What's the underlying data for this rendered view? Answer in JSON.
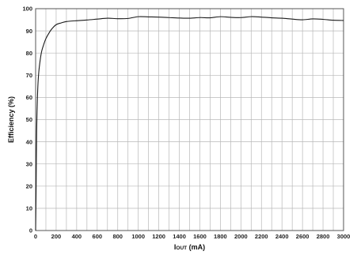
{
  "chart_data": {
    "type": "line",
    "title": "",
    "xlabel": {
      "main": "I",
      "sub": "OUT",
      "unit": " (mA)"
    },
    "ylabel": "Efficiency (%)",
    "xlim": [
      0,
      3000
    ],
    "ylim": [
      0,
      100
    ],
    "x_ticks": [
      0,
      100,
      200,
      300,
      400,
      500,
      600,
      700,
      800,
      900,
      1000,
      1100,
      1200,
      1300,
      1400,
      1500,
      1600,
      1700,
      1800,
      1900,
      2000,
      2100,
      2200,
      2300,
      2400,
      2500,
      2600,
      2700,
      2800,
      2900,
      3000
    ],
    "x_tick_labels": [
      "0",
      "200",
      "400",
      "600",
      "800",
      "1000",
      "1200",
      "1400",
      "1600",
      "1800",
      "2000",
      "2200",
      "2400",
      "2600",
      "2800",
      "3000"
    ],
    "y_tick_labels": [
      "0",
      "10",
      "20",
      "30",
      "40",
      "50",
      "60",
      "70",
      "80",
      "90",
      "100"
    ],
    "grid": true,
    "legend": "none",
    "series": [
      {
        "color": "#1a1a1a",
        "x": [
          0,
          5,
          10,
          20,
          30,
          45,
          60,
          80,
          100,
          130,
          160,
          200,
          250,
          300,
          400,
          500,
          600,
          700,
          800,
          900,
          1000,
          1100,
          1200,
          1300,
          1400,
          1500,
          1600,
          1700,
          1800,
          1900,
          2000,
          2100,
          2200,
          2300,
          2400,
          2500,
          2600,
          2700,
          2800,
          2900,
          3000
        ],
        "y": [
          0,
          20,
          45,
          63,
          71,
          77,
          81,
          84,
          86.5,
          89,
          91,
          92.8,
          93.6,
          94.2,
          94.6,
          94.9,
          95.3,
          95.7,
          95.5,
          95.6,
          96.4,
          96.3,
          96.2,
          96.0,
          95.8,
          95.7,
          96.0,
          95.9,
          96.4,
          96.1,
          96.0,
          96.4,
          96.2,
          95.9,
          95.7,
          95.3,
          95.0,
          95.4,
          95.2,
          94.8,
          94.7
        ]
      }
    ]
  }
}
